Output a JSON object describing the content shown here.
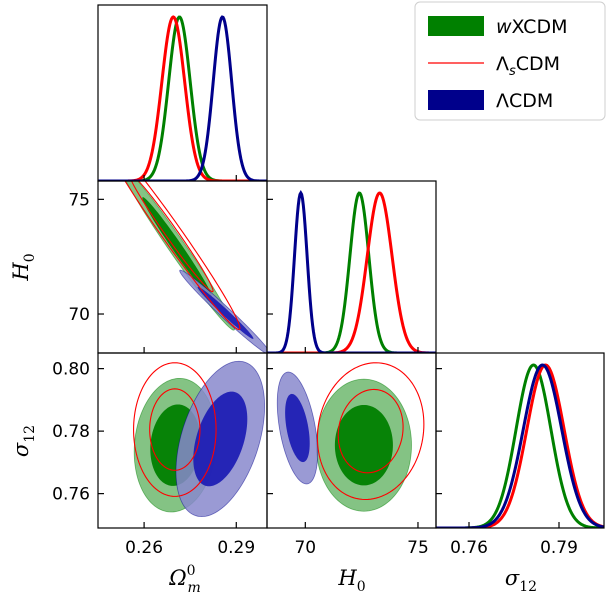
{
  "chart_data": {
    "type": "corner",
    "colors": {
      "wXCDM": "#008000",
      "LambdaSCDM": "#ff0000",
      "LambdaCDM": "#00008b",
      "wXCDM_fill_inner": "#008000",
      "wXCDM_fill_outer": "#6fb86f",
      "LambdaCDM_fill_inner": "#1f1fb4",
      "LambdaCDM_fill_outer": "#8888cc"
    },
    "legend": {
      "position": "top-right",
      "entries": [
        {
          "key": "wXCDM",
          "style": "filled",
          "parts": [
            {
              "t": "w",
              "it": true
            },
            {
              "t": "XCDM"
            }
          ]
        },
        {
          "key": "LambdaSCDM",
          "style": "line",
          "parts": [
            {
              "t": "Λ"
            },
            {
              "t": "s",
              "sub": true,
              "it": true
            },
            {
              "t": "CDM"
            }
          ]
        },
        {
          "key": "LambdaCDM",
          "style": "filled",
          "parts": [
            {
              "t": "ΛCDM"
            }
          ]
        }
      ]
    },
    "params": {
      "Om": {
        "label_main": "Ω",
        "label_sup": "0",
        "label_sub": "m",
        "range": [
          0.245,
          0.3
        ],
        "ticks": [
          0.26,
          0.29
        ],
        "tick_labels": [
          "0.26",
          "0.29"
        ]
      },
      "H0": {
        "label_main": "H",
        "label_sub": "0",
        "range": [
          68.3,
          75.8
        ],
        "ticks": [
          70,
          75
        ],
        "tick_labels": [
          "70",
          "75"
        ]
      },
      "s12": {
        "label_main": "σ",
        "label_sub": "12",
        "range": [
          0.749,
          0.805
        ],
        "ticks": [
          0.76,
          0.78,
          0.8
        ],
        "tick_labels_x": [
          "0.76",
          "0.79"
        ],
        "ticks_x": [
          0.76,
          0.79
        ],
        "tick_labels_y": [
          "0.76",
          "0.78",
          "0.80"
        ]
      }
    },
    "marginals": {
      "Om": [
        {
          "model": "wXCDM",
          "mean": 0.2715,
          "sigma": 0.0035
        },
        {
          "model": "LambdaSCDM",
          "mean": 0.2695,
          "sigma": 0.0037
        },
        {
          "model": "LambdaCDM",
          "mean": 0.2855,
          "sigma": 0.003
        }
      ],
      "H0": [
        {
          "model": "wXCDM",
          "mean": 72.4,
          "sigma": 0.42
        },
        {
          "model": "LambdaSCDM",
          "mean": 73.3,
          "sigma": 0.55
        },
        {
          "model": "LambdaCDM",
          "mean": 69.8,
          "sigma": 0.28
        }
      ],
      "s12": [
        {
          "model": "wXCDM",
          "mean": 0.7815,
          "sigma": 0.0058
        },
        {
          "model": "LambdaSCDM",
          "mean": 0.7855,
          "sigma": 0.0062
        },
        {
          "model": "LambdaCDM",
          "mean": 0.7845,
          "sigma": 0.0064
        }
      ]
    },
    "contours": {
      "Om_H0": [
        {
          "model": "wXCDM",
          "style": "filled",
          "center": [
            0.2708,
            72.9
          ],
          "sd": [
            0.0075,
            1.45
          ],
          "rho": -0.985
        },
        {
          "model": "LambdaSCDM",
          "style": "line",
          "center": [
            0.2688,
            73.55
          ],
          "sd": [
            0.009,
            1.7
          ],
          "rho": -0.985
        },
        {
          "model": "LambdaCDM",
          "style": "filled",
          "center": [
            0.2865,
            70.05
          ],
          "sd": [
            0.006,
            0.75
          ],
          "rho": -0.985
        }
      ],
      "Om_s12": [
        {
          "model": "wXCDM",
          "style": "filled",
          "center": [
            0.2702,
            0.7755
          ],
          "sd": [
            0.0054,
            0.0086
          ],
          "rho": 0.1
        },
        {
          "model": "LambdaSCDM",
          "style": "line",
          "center": [
            0.27,
            0.7805
          ],
          "sd": [
            0.0054,
            0.0086
          ],
          "rho": 0.0
        },
        {
          "model": "LambdaCDM",
          "style": "filled",
          "center": [
            0.2848,
            0.7775
          ],
          "sd": [
            0.0058,
            0.01
          ],
          "rho": 0.42
        }
      ],
      "H0_s12": [
        {
          "model": "wXCDM",
          "style": "filled",
          "center": [
            72.6,
            0.7755
          ],
          "sd": [
            0.85,
            0.0085
          ],
          "rho": 0.0
        },
        {
          "model": "LambdaSCDM",
          "style": "line",
          "center": [
            72.9,
            0.78
          ],
          "sd": [
            0.95,
            0.0088
          ],
          "rho": 0.1
        },
        {
          "model": "LambdaCDM",
          "style": "filled",
          "center": [
            69.65,
            0.781
          ],
          "sd": [
            0.36,
            0.0072
          ],
          "rho": -0.45
        }
      ]
    }
  }
}
